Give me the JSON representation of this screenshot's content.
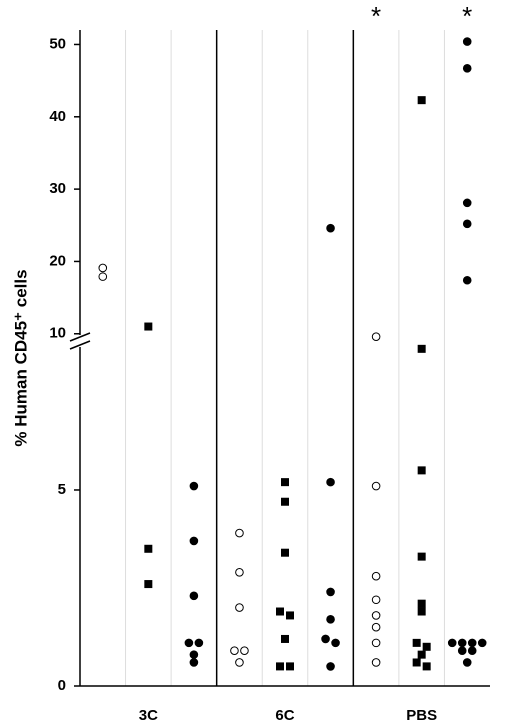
{
  "chart_data": {
    "type": "dot",
    "y_label": "% Human CD45⁺ cells",
    "groups": [
      "3C",
      "6C",
      "PBS"
    ],
    "color": "#000000",
    "segments": [
      {
        "ylim": [
          0,
          8.8
        ],
        "yticks": [
          0,
          5
        ]
      },
      {
        "ylim": [
          9,
          52
        ],
        "yticks": [
          10,
          20,
          30,
          40,
          50
        ]
      }
    ],
    "series": [
      {
        "group": 0,
        "marker": "open-circle",
        "values": [
          19.1,
          17.9
        ]
      },
      {
        "group": 0,
        "marker": "square",
        "values": [
          11,
          3.5,
          2.6
        ]
      },
      {
        "group": 0,
        "marker": "circle",
        "values": [
          5.1,
          3.7,
          2.3,
          1.1,
          1.1,
          0.8,
          0.6
        ]
      },
      {
        "group": 1,
        "marker": "open-circle",
        "values": [
          3.9,
          2.9,
          2.0,
          0.9,
          0.9,
          0.6
        ]
      },
      {
        "group": 1,
        "marker": "square",
        "values": [
          5.2,
          4.7,
          3.4,
          1.9,
          1.8,
          1.2,
          0.5,
          0.5
        ]
      },
      {
        "group": 1,
        "marker": "circle",
        "values": [
          24.6,
          5.2,
          2.4,
          1.7,
          1.2,
          1.1,
          0.5
        ]
      },
      {
        "group": 2,
        "marker": "open-circle",
        "values": [
          9.6,
          5.1,
          2.8,
          2.2,
          1.8,
          1.5,
          1.1,
          0.6
        ]
      },
      {
        "group": 2,
        "marker": "square",
        "values": [
          42.3,
          8.6,
          5.5,
          3.3,
          2.1,
          1.9,
          1.1,
          1.0,
          0.8,
          0.6,
          0.5
        ]
      },
      {
        "group": 2,
        "marker": "circle",
        "values": [
          50.4,
          46.7,
          28.1,
          25.2,
          17.4,
          1.1,
          1.1,
          1.1,
          1.1,
          0.9,
          0.9,
          0.6
        ]
      }
    ],
    "annotations": [
      {
        "text": "*",
        "column": 6
      },
      {
        "text": "*",
        "column": 8
      }
    ]
  }
}
